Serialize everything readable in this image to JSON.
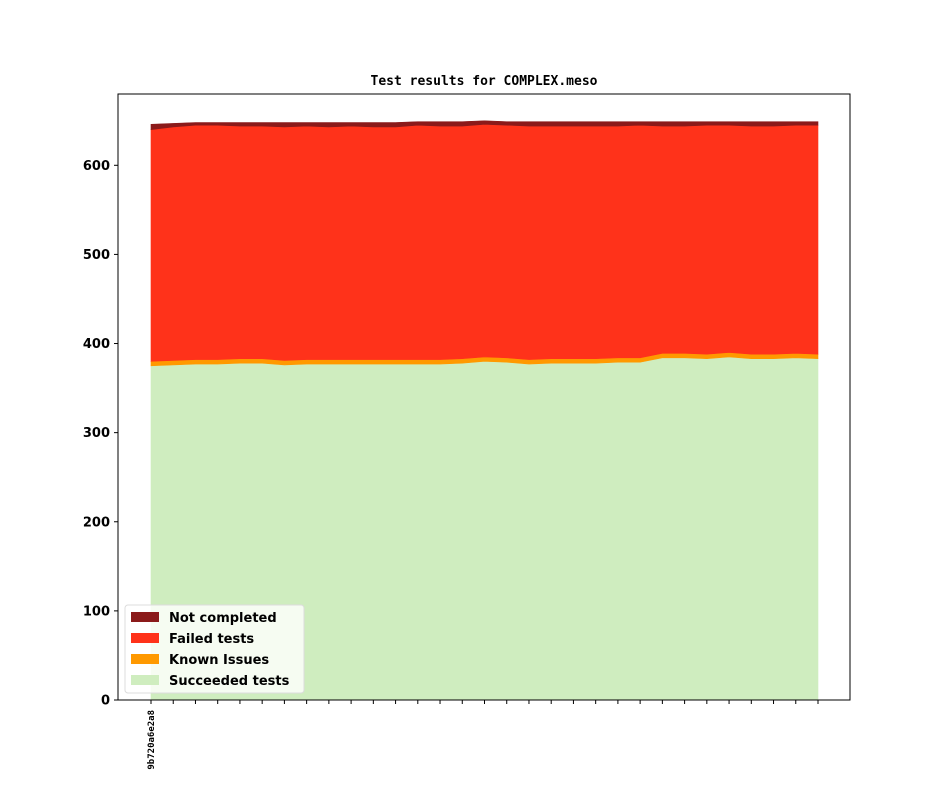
{
  "chart_data": {
    "type": "area",
    "stacked": true,
    "title": "Test results for COMPLEX.meso",
    "xlabel": "",
    "ylabel": "",
    "ylim": [
      0,
      680
    ],
    "yticks": [
      0,
      100,
      200,
      300,
      400,
      500,
      600
    ],
    "x_count": 31,
    "x_tick_labels": [
      "9b720a6e2a8"
    ],
    "legend_position": "lower-left",
    "grid": false,
    "series": [
      {
        "name": "Succeeded tests",
        "color": "#cfedbf",
        "values": [
          375,
          376,
          377,
          377,
          378,
          378,
          376,
          377,
          377,
          377,
          377,
          377,
          377,
          377,
          378,
          380,
          379,
          377,
          378,
          378,
          378,
          379,
          379,
          384,
          384,
          383,
          385,
          383,
          383,
          384,
          383
        ]
      },
      {
        "name": "Known Issues",
        "color": "#ff9900",
        "values": [
          5,
          5,
          5,
          5,
          5,
          5,
          5,
          5,
          5,
          5,
          5,
          5,
          5,
          5,
          5,
          5,
          5,
          5,
          5,
          5,
          5,
          5,
          5,
          5,
          5,
          5,
          5,
          5,
          5,
          5,
          5
        ]
      },
      {
        "name": "Failed tests",
        "color": "#ff321a",
        "values": [
          260,
          262,
          263,
          263,
          261,
          261,
          262,
          262,
          261,
          262,
          261,
          261,
          263,
          262,
          261,
          261,
          261,
          262,
          261,
          261,
          261,
          260,
          261,
          255,
          255,
          257,
          255,
          256,
          256,
          256,
          257
        ]
      },
      {
        "name": "Not completed",
        "color": "#8b1a1a",
        "values": [
          6,
          4,
          3,
          3,
          4,
          4,
          5,
          4,
          5,
          4,
          5,
          5,
          4,
          5,
          5,
          4,
          4,
          5,
          5,
          5,
          5,
          5,
          4,
          5,
          5,
          4,
          4,
          5,
          5,
          4,
          4
        ]
      }
    ]
  }
}
